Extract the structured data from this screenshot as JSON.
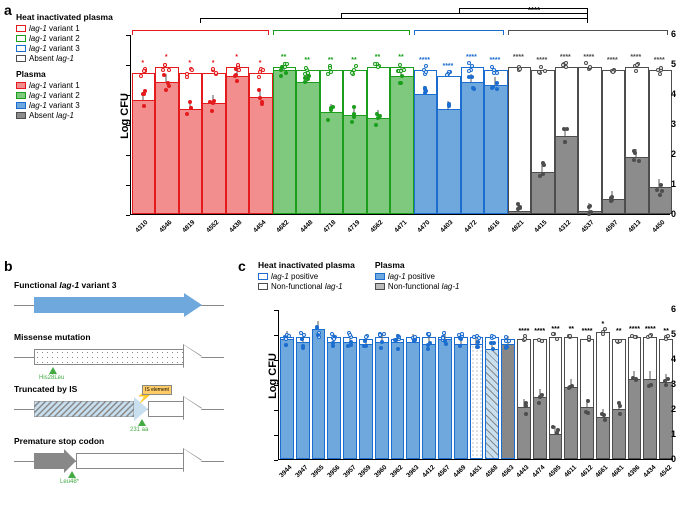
{
  "a": {
    "ymax": 6,
    "ytick": 1,
    "groups": [
      {
        "name": "v1",
        "color": "#f28e8e",
        "stroke": "#e41a1c",
        "sig": "*",
        "items": [
          {
            "x": "4310",
            "hi": 4.7,
            "p": 3.8
          },
          {
            "x": "4546",
            "hi": 4.9,
            "p": 4.4
          },
          {
            "x": "4819",
            "hi": 4.7,
            "p": 3.5
          },
          {
            "x": "4552",
            "hi": 4.7,
            "p": 3.7
          },
          {
            "x": "4438",
            "hi": 4.9,
            "p": 4.6
          },
          {
            "x": "4454",
            "hi": 4.7,
            "p": 3.9
          }
        ]
      },
      {
        "name": "v2",
        "color": "#7fc97f",
        "stroke": "#1b9e1b",
        "sig": "**",
        "items": [
          {
            "x": "4682",
            "hi": 4.9,
            "p": 4.8
          },
          {
            "x": "4448",
            "hi": 4.8,
            "p": 4.4
          },
          {
            "x": "4718",
            "hi": 4.8,
            "p": 3.4
          },
          {
            "x": "4719",
            "hi": 4.8,
            "p": 3.3
          },
          {
            "x": "4562",
            "hi": 4.9,
            "p": 3.2
          },
          {
            "x": "4471",
            "hi": 4.9,
            "p": 4.6
          }
        ]
      },
      {
        "name": "v3",
        "color": "#6fa8dc",
        "stroke": "#1c6dd0",
        "sig": "****",
        "items": [
          {
            "x": "4470",
            "hi": 4.8,
            "p": 4.0
          },
          {
            "x": "4403",
            "hi": 4.6,
            "p": 3.5
          },
          {
            "x": "4472",
            "hi": 4.9,
            "p": 4.4
          },
          {
            "x": "4616",
            "hi": 4.8,
            "p": 4.3
          }
        ]
      },
      {
        "name": "abs",
        "color": "#8c8c8c",
        "stroke": "#4d4d4d",
        "sig": "****",
        "items": [
          {
            "x": "4821",
            "hi": 4.9,
            "p": 0.1
          },
          {
            "x": "4415",
            "hi": 4.8,
            "p": 1.4
          },
          {
            "x": "4312",
            "hi": 4.9,
            "p": 2.6
          },
          {
            "x": "4537",
            "hi": 4.9,
            "p": 0.1
          },
          {
            "x": "4597",
            "hi": 4.8,
            "p": 0.5
          },
          {
            "x": "4813",
            "hi": 4.9,
            "p": 1.9
          },
          {
            "x": "4450",
            "hi": 4.8,
            "p": 0.9
          }
        ]
      }
    ],
    "legend": {
      "hi_title": "Heat inactivated plasma",
      "p_title": "Plasma",
      "rows": [
        {
          "c": "#f28e8e",
          "s": "#e41a1c",
          "l": "lag-1 variant 1"
        },
        {
          "c": "#7fc97f",
          "s": "#1b9e1b",
          "l": "lag-1 variant 2"
        },
        {
          "c": "#6fa8dc",
          "s": "#1c6dd0",
          "l": "lag-1 variant 3"
        },
        {
          "c": "#8c8c8c",
          "s": "#4d4d4d",
          "l": "Absent lag-1"
        }
      ]
    },
    "ylabel": "Log CFU"
  },
  "b": {
    "rows": [
      {
        "t": "Functional lag-1 variant 3",
        "type": "solid"
      },
      {
        "t": "Missense mutation",
        "type": "dots",
        "mut": "His28Leu"
      },
      {
        "t": "Truncated by IS",
        "type": "hatch",
        "mut": "231 aa"
      },
      {
        "t": "Premature stop codon",
        "type": "short",
        "mut": "Leu48*"
      }
    ]
  },
  "c": {
    "ymax": 6,
    "ytick": 1,
    "ylabel": "Log CFU",
    "legend": {
      "hi_title": "Heat inactivated plasma",
      "p_title": "Plasma",
      "rows": [
        {
          "c": "#6fa8dc",
          "s": "#1c6dd0",
          "l": "lag-1 positive"
        },
        {
          "c": "#bbb",
          "s": "#4d4d4d",
          "l": "Non-functional lag-1"
        }
      ]
    },
    "pos": [
      {
        "x": "3944",
        "hi": 4.9,
        "p": 4.8
      },
      {
        "x": "3947",
        "hi": 4.9,
        "p": 4.7
      },
      {
        "x": "3955",
        "hi": 5.0,
        "p": 5.2
      },
      {
        "x": "3956",
        "hi": 4.9,
        "p": 4.7
      },
      {
        "x": "3957",
        "hi": 4.9,
        "p": 4.7
      },
      {
        "x": "3959",
        "hi": 4.8,
        "p": 4.6
      },
      {
        "x": "3960",
        "hi": 4.9,
        "p": 4.7
      },
      {
        "x": "3962",
        "hi": 4.8,
        "p": 4.7
      },
      {
        "x": "3963",
        "hi": 4.9,
        "p": 4.7
      },
      {
        "x": "4412",
        "hi": 4.9,
        "p": 4.6
      },
      {
        "x": "4567",
        "hi": 4.9,
        "p": 4.8
      },
      {
        "x": "4469",
        "hi": 4.9,
        "p": 4.6
      },
      {
        "x": "4451",
        "hi": 4.9,
        "p": 4.6,
        "pat": "dots"
      },
      {
        "x": "4568",
        "hi": 4.9,
        "p": 4.4,
        "pat": "hatch"
      },
      {
        "x": "4563",
        "hi": 4.8,
        "p": 4.6,
        "pat": "short"
      }
    ],
    "neg": [
      {
        "x": "4443",
        "hi": 4.8,
        "p": 2.1,
        "s": "****"
      },
      {
        "x": "4474",
        "hi": 4.8,
        "p": 2.5,
        "s": "****"
      },
      {
        "x": "4595",
        "hi": 4.9,
        "p": 1.0,
        "s": "***"
      },
      {
        "x": "4611",
        "hi": 4.9,
        "p": 2.9,
        "s": "**"
      },
      {
        "x": "4612",
        "hi": 4.8,
        "p": 2.1,
        "s": "****"
      },
      {
        "x": "4661",
        "hi": 5.1,
        "p": 1.7,
        "s": "*"
      },
      {
        "x": "4681",
        "hi": 4.8,
        "p": 2.0,
        "s": "**"
      },
      {
        "x": "4396",
        "hi": 4.9,
        "p": 3.2,
        "s": "****"
      },
      {
        "x": "4434",
        "hi": 4.9,
        "p": 3.2,
        "s": "****"
      },
      {
        "x": "4542",
        "hi": 4.8,
        "p": 3.1,
        "s": "**"
      }
    ]
  }
}
